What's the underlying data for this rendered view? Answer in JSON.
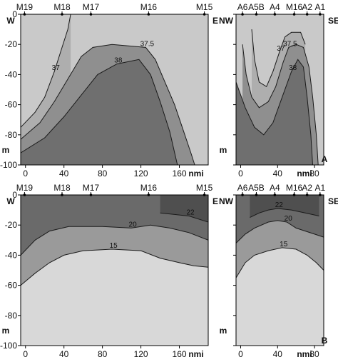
{
  "chart_data": [
    {
      "type": "contour",
      "panel": "A",
      "variable_hint": "isolines 37, 37.5, 38",
      "sections": [
        {
          "id": "west-east",
          "left_label": "W",
          "right_label": "E",
          "stations": [
            {
              "name": "M19",
              "x": -1
            },
            {
              "name": "M18",
              "x": 38
            },
            {
              "name": "M17",
              "x": 68
            },
            {
              "name": "M16",
              "x": 128
            },
            {
              "name": "M15",
              "x": 186
            }
          ],
          "xlim": [
            -5,
            190
          ],
          "ylim": [
            -100,
            0
          ],
          "xticks": [
            "0",
            "40",
            "80",
            "120",
            "160"
          ],
          "yticks": [
            "0",
            "-20",
            "-40",
            "-60",
            "-80",
            "-100"
          ],
          "xlabel": "nmi",
          "ylabel": "m",
          "contours": [
            {
              "level": "37",
              "label": "37",
              "points": [
                [
                  -5,
                  -75
                ],
                [
                  10,
                  -65
                ],
                [
                  20,
                  -55
                ],
                [
                  30,
                  -38
                ],
                [
                  38,
                  -22
                ],
                [
                  44,
                  -10
                ],
                [
                  47,
                  0
                ]
              ]
            },
            {
              "level": "37.5",
              "label": "37.5",
              "points": [
                [
                  -5,
                  -83
                ],
                [
                  15,
                  -72
                ],
                [
                  30,
                  -58
                ],
                [
                  45,
                  -42
                ],
                [
                  58,
                  -28
                ],
                [
                  70,
                  -22
                ],
                [
                  90,
                  -20
                ],
                [
                  125,
                  -22
                ],
                [
                  135,
                  -30
                ],
                [
                  145,
                  -45
                ],
                [
                  155,
                  -60
                ],
                [
                  163,
                  -75
                ],
                [
                  172,
                  -92
                ],
                [
                  176,
                  -100
                ]
              ]
            },
            {
              "level": "38",
              "label": "38",
              "points": [
                [
                  -5,
                  -92
                ],
                [
                  20,
                  -82
                ],
                [
                  40,
                  -68
                ],
                [
                  60,
                  -52
                ],
                [
                  75,
                  -40
                ],
                [
                  95,
                  -33
                ],
                [
                  118,
                  -30
                ],
                [
                  130,
                  -40
                ],
                [
                  140,
                  -58
                ],
                [
                  150,
                  -78
                ],
                [
                  158,
                  -100
                ]
              ]
            }
          ]
        },
        {
          "id": "northwest-southeast",
          "left_label": "NW",
          "right_label": "SE",
          "stations": [
            {
              "name": "A6",
              "x": 2
            },
            {
              "name": "A5B",
              "x": 17
            },
            {
              "name": "A4",
              "x": 37
            },
            {
              "name": "M16",
              "x": 58
            },
            {
              "name": "A2",
              "x": 72
            },
            {
              "name": "A1",
              "x": 86
            }
          ],
          "xlim": [
            -5,
            90
          ],
          "ylim": [
            -100,
            0
          ],
          "xticks": [
            "0",
            "40",
            "80"
          ],
          "xlabel": "nmi",
          "ylabel": "m",
          "contours": [
            {
              "level": "37",
              "label": "37",
              "points": [
                [
                  12,
                  -10
                ],
                [
                  15,
                  -30
                ],
                [
                  20,
                  -45
                ],
                [
                  28,
                  -48
                ],
                [
                  35,
                  -38
                ],
                [
                  42,
                  -25
                ],
                [
                  48,
                  -15
                ],
                [
                  55,
                  -12
                ],
                [
                  65,
                  -12
                ],
                [
                  70,
                  -20
                ]
              ]
            },
            {
              "level": "37.5",
              "label": "37.5",
              "points": [
                [
                  2,
                  -20
                ],
                [
                  6,
                  -40
                ],
                [
                  12,
                  -55
                ],
                [
                  20,
                  -62
                ],
                [
                  30,
                  -58
                ],
                [
                  38,
                  -48
                ],
                [
                  46,
                  -32
                ],
                [
                  52,
                  -22
                ],
                [
                  60,
                  -20
                ],
                [
                  68,
                  -22
                ],
                [
                  74,
                  -35
                ],
                [
                  78,
                  -55
                ],
                [
                  82,
                  -80
                ],
                [
                  84,
                  -100
                ]
              ]
            },
            {
              "level": "38",
              "label": "38",
              "points": [
                [
                  -5,
                  -45
                ],
                [
                  5,
                  -62
                ],
                [
                  15,
                  -75
                ],
                [
                  25,
                  -80
                ],
                [
                  35,
                  -72
                ],
                [
                  45,
                  -55
                ],
                [
                  55,
                  -38
                ],
                [
                  62,
                  -30
                ],
                [
                  68,
                  -35
                ],
                [
                  72,
                  -55
                ],
                [
                  76,
                  -80
                ],
                [
                  78,
                  -100
                ]
              ]
            }
          ]
        }
      ]
    },
    {
      "type": "contour",
      "panel": "B",
      "variable_hint": "isolines 15, 20, 22",
      "sections": [
        {
          "id": "west-east",
          "left_label": "W",
          "right_label": "E",
          "stations": [
            {
              "name": "M19",
              "x": -1
            },
            {
              "name": "M18",
              "x": 38
            },
            {
              "name": "M17",
              "x": 68
            },
            {
              "name": "M16",
              "x": 128
            },
            {
              "name": "M15",
              "x": 186
            }
          ],
          "xlim": [
            -5,
            190
          ],
          "ylim": [
            -100,
            0
          ],
          "xticks": [
            "0",
            "40",
            "80",
            "120",
            "160"
          ],
          "yticks": [
            "0",
            "-20",
            "-40",
            "-60",
            "-80",
            "-100"
          ],
          "xlabel": "nmi",
          "ylabel": "m",
          "contours": [
            {
              "level": "22",
              "label": "22",
              "points": [
                [
                  140,
                  -12
                ],
                [
                  155,
                  -13
                ],
                [
                  170,
                  -14
                ],
                [
                  180,
                  -16
                ],
                [
                  190,
                  -18
                ]
              ]
            },
            {
              "level": "20",
              "label": "20",
              "points": [
                [
                  -5,
                  -40
                ],
                [
                  10,
                  -30
                ],
                [
                  25,
                  -24
                ],
                [
                  45,
                  -21
                ],
                [
                  80,
                  -21
                ],
                [
                  110,
                  -22
                ],
                [
                  130,
                  -20
                ],
                [
                  150,
                  -22
                ],
                [
                  170,
                  -25
                ],
                [
                  190,
                  -30
                ]
              ]
            },
            {
              "level": "15",
              "label": "15",
              "points": [
                [
                  -5,
                  -60
                ],
                [
                  10,
                  -52
                ],
                [
                  25,
                  -45
                ],
                [
                  40,
                  -40
                ],
                [
                  60,
                  -37
                ],
                [
                  90,
                  -36
                ],
                [
                  120,
                  -37
                ],
                [
                  140,
                  -42
                ],
                [
                  160,
                  -45
                ],
                [
                  175,
                  -47
                ],
                [
                  190,
                  -48
                ]
              ]
            }
          ]
        },
        {
          "id": "northwest-southeast",
          "left_label": "NW",
          "right_label": "SE",
          "stations": [
            {
              "name": "A6",
              "x": 2
            },
            {
              "name": "A5B",
              "x": 17
            },
            {
              "name": "A4",
              "x": 37
            },
            {
              "name": "M16",
              "x": 58
            },
            {
              "name": "A2",
              "x": 72
            },
            {
              "name": "A1",
              "x": 86
            }
          ],
          "xlim": [
            -5,
            90
          ],
          "ylim": [
            -100,
            0
          ],
          "xticks": [
            "0",
            "40",
            "80"
          ],
          "xlabel": "nmi",
          "ylabel": "m",
          "contours": [
            {
              "level": "22",
              "label": "22",
              "points": [
                [
                  10,
                  -15
                ],
                [
                  20,
                  -12
                ],
                [
                  30,
                  -10
                ],
                [
                  40,
                  -9
                ],
                [
                  55,
                  -10
                ],
                [
                  70,
                  -12
                ],
                [
                  85,
                  -14
                ]
              ]
            },
            {
              "level": "20",
              "label": "20",
              "points": [
                [
                  -5,
                  -32
                ],
                [
                  5,
                  -26
                ],
                [
                  15,
                  -22
                ],
                [
                  30,
                  -18
                ],
                [
                  40,
                  -17
                ],
                [
                  50,
                  -18
                ],
                [
                  60,
                  -22
                ],
                [
                  70,
                  -24
                ],
                [
                  80,
                  -26
                ],
                [
                  90,
                  -28
                ]
              ]
            },
            {
              "level": "15",
              "label": "15",
              "points": [
                [
                  -5,
                  -55
                ],
                [
                  5,
                  -45
                ],
                [
                  15,
                  -40
                ],
                [
                  30,
                  -37
                ],
                [
                  45,
                  -35
                ],
                [
                  60,
                  -36
                ],
                [
                  72,
                  -40
                ],
                [
                  82,
                  -45
                ],
                [
                  90,
                  -50
                ]
              ]
            }
          ]
        }
      ]
    }
  ]
}
